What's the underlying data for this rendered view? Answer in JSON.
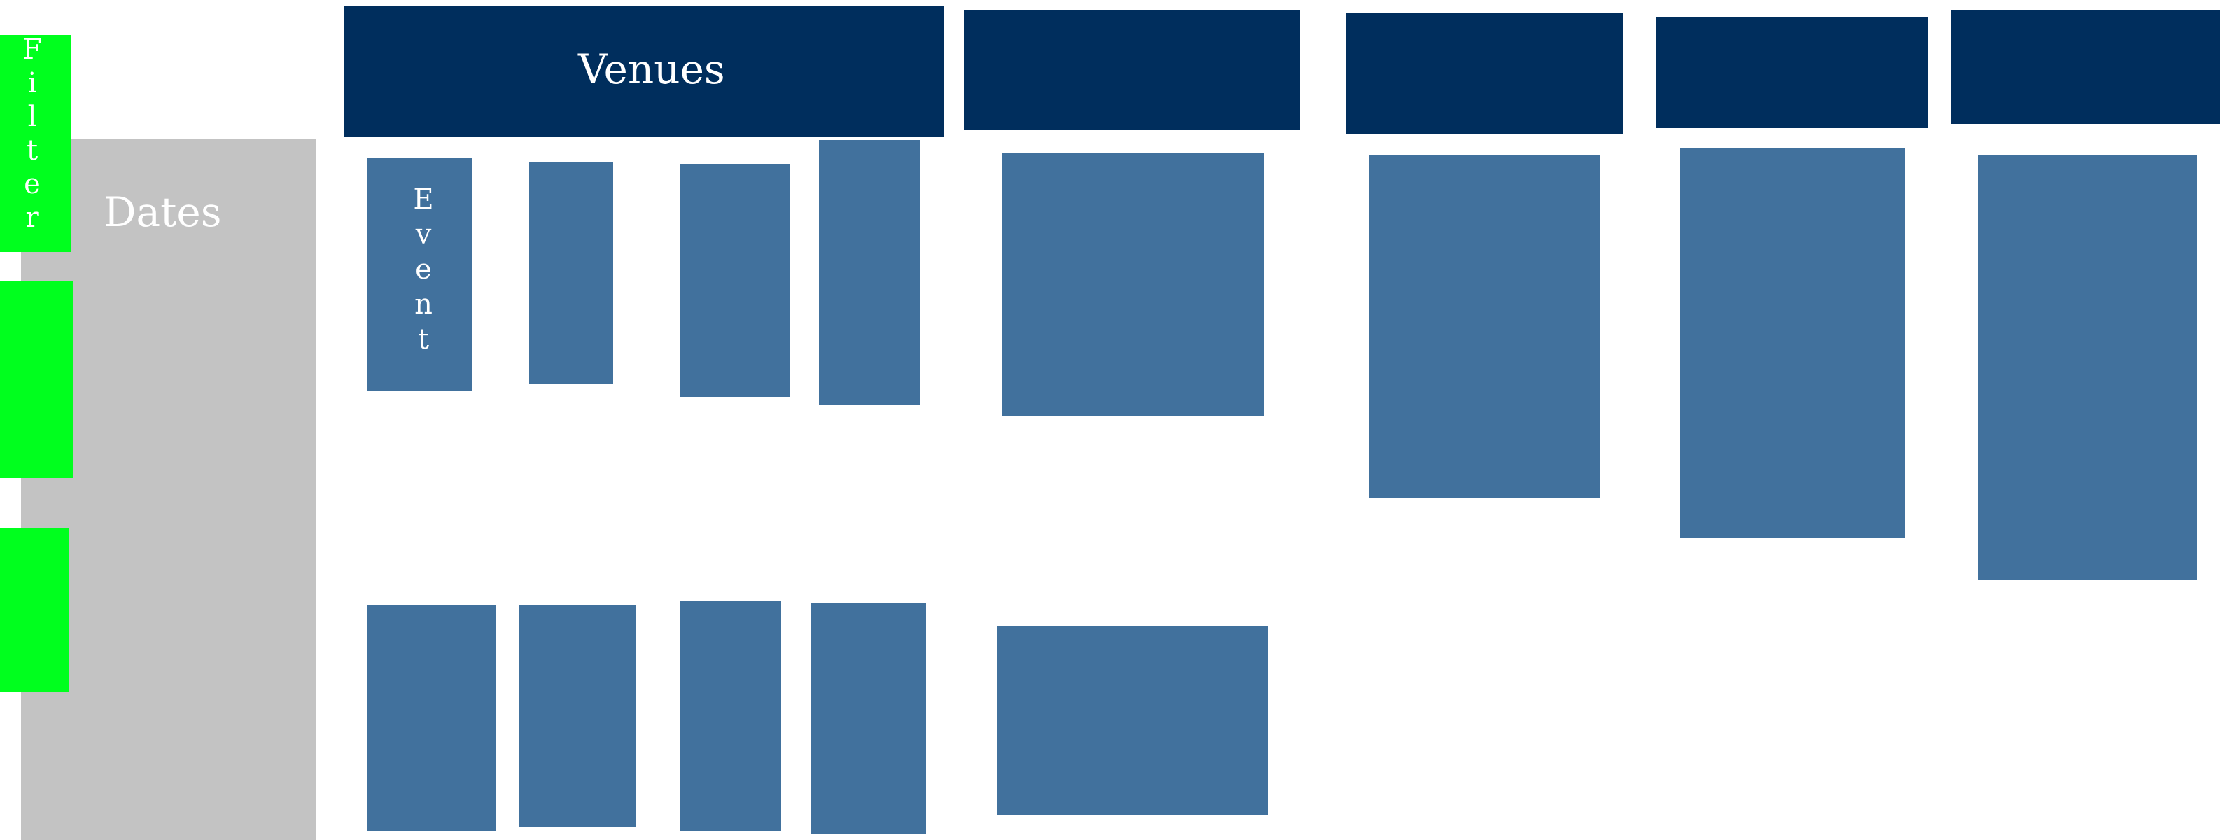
{
  "filter": {
    "label": "Filter"
  },
  "dates": {
    "label": "Dates"
  },
  "venues": {
    "label": "Venues"
  },
  "events": {
    "first_label": "Event"
  },
  "colors": {
    "filter_green": "#00ff1e",
    "dates_gray": "#c3c3c3",
    "header_navy": "#002e5d",
    "card_blue": "#41719d",
    "text_white": "#ffffff"
  }
}
